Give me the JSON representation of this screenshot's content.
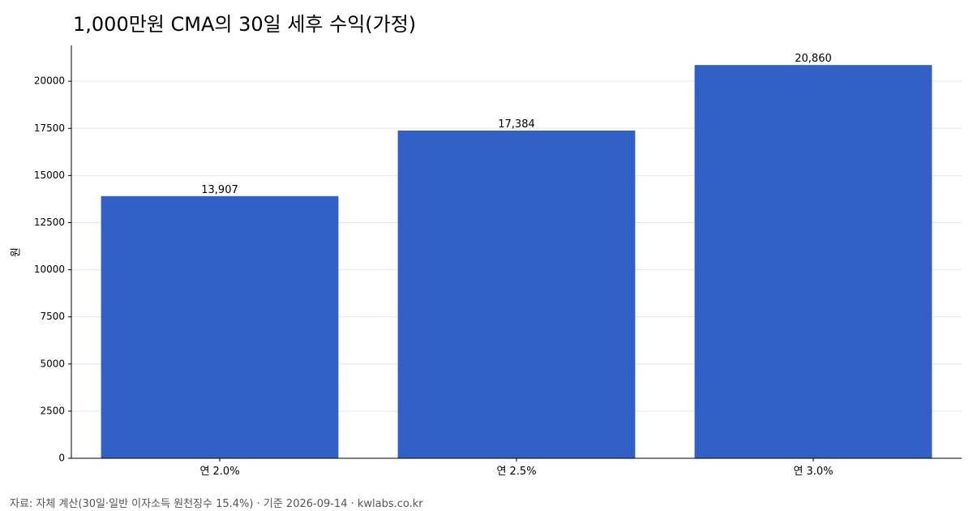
{
  "chart_data": {
    "type": "bar",
    "title": "1,000만원 CMA의 30일 세후 수익(가정)",
    "xlabel": "",
    "ylabel": "원",
    "categories": [
      "연 2.0%",
      "연 2.5%",
      "연 3.0%"
    ],
    "values": [
      13907,
      17384,
      20860
    ],
    "value_labels": [
      "13,907",
      "17,384",
      "20,860"
    ],
    "ylim": [
      0,
      21900
    ],
    "yticks": [
      0,
      2500,
      5000,
      7500,
      10000,
      12500,
      15000,
      17500,
      20000
    ],
    "grid": "y-major-light",
    "bar_color": "#3160c6",
    "legend": "none"
  },
  "footer": {
    "source": "자료: 자체 계산(30일·일반 이자소득 원천징수 15.4%) · 기준 2026-09-14 · kwlabs.co.kr"
  }
}
